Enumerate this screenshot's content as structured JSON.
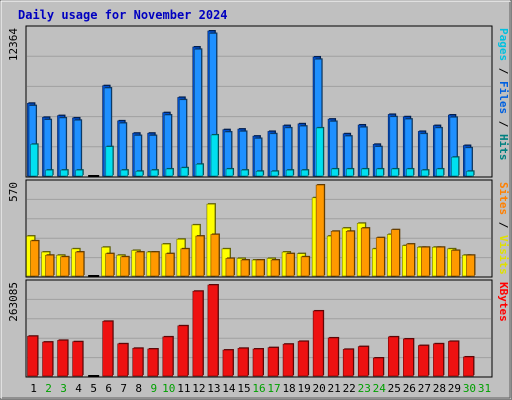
{
  "chart_data": {
    "type": "bar",
    "title": "Daily usage for November 2024",
    "categories": [
      "1",
      "2",
      "3",
      "4",
      "5",
      "6",
      "7",
      "8",
      "9",
      "10",
      "11",
      "12",
      "13",
      "14",
      "15",
      "16",
      "17",
      "18",
      "19",
      "20",
      "21",
      "22",
      "23",
      "24",
      "25",
      "26",
      "27",
      "28",
      "29",
      "30",
      "31"
    ],
    "weekend_days": [
      "2",
      "3",
      "9",
      "10",
      "16",
      "17",
      "23",
      "24",
      "30",
      "31"
    ],
    "panels": [
      {
        "id": "hits",
        "ymax_label": "12364",
        "ymax": 12364,
        "right_labels": [
          {
            "text": "Pages",
            "color": "#00c0e0"
          },
          {
            "text": " / ",
            "color": "#000000"
          },
          {
            "text": "Files",
            "color": "#0060e0"
          },
          {
            "text": " / ",
            "color": "#000000"
          },
          {
            "text": "Hits",
            "color": "#008080"
          }
        ],
        "series": [
          {
            "name": "Hits",
            "color": "#0050d0",
            "values": [
              6200,
              5000,
              5150,
              4950,
              0,
              7700,
              4700,
              3650,
              3650,
              5400,
              6700,
              11000,
              12364,
              3950,
              4000,
              3400,
              3800,
              4300,
              4450,
              10150,
              4850,
              3600,
              4350,
              2700,
              5250,
              5050,
              3800,
              4300,
              5200,
              2600,
              0
            ]
          },
          {
            "name": "Files",
            "color": "#1e90ff",
            "values": [
              6000,
              4800,
              4950,
              4750,
              0,
              7500,
              4500,
              3450,
              3450,
              5200,
              6500,
              10800,
              12150,
              3750,
              3800,
              3200,
              3600,
              4100,
              4250,
              9950,
              4650,
              3400,
              4150,
              2500,
              5050,
              4850,
              3600,
              4100,
              5000,
              2400,
              0
            ]
          },
          {
            "name": "Pages",
            "color": "#00e0f0",
            "values": [
              2700,
              500,
              500,
              500,
              0,
              2500,
              500,
              400,
              500,
              600,
              700,
              1000,
              3500,
              600,
              500,
              400,
              400,
              500,
              500,
              4100,
              600,
              600,
              600,
              600,
              600,
              600,
              500,
              600,
              1600,
              400,
              0
            ]
          }
        ]
      },
      {
        "id": "visits",
        "ymax_label": "570",
        "ymax": 570,
        "right_labels": [
          {
            "text": "Sites",
            "color": "#ff8000"
          },
          {
            "text": " / ",
            "color": "#000000"
          },
          {
            "text": "Visits",
            "color": "#e0e000"
          }
        ],
        "series": [
          {
            "name": "Visits",
            "color": "#ffff00",
            "values": [
              250,
              150,
              130,
              170,
              0,
              180,
              130,
              160,
              150,
              200,
              230,
              320,
              450,
              170,
              110,
              100,
              110,
              150,
              140,
              490,
              250,
              300,
              330,
              170,
              260,
              190,
              180,
              180,
              170,
              130,
              0
            ]
          },
          {
            "name": "Sites",
            "color": "#ff9900",
            "values": [
              220,
              130,
              120,
              150,
              0,
              140,
              120,
              150,
              150,
              140,
              170,
              250,
              260,
              110,
              100,
              100,
              100,
              140,
              120,
              570,
              280,
              280,
              300,
              240,
              290,
              200,
              180,
              180,
              160,
              130,
              0
            ]
          }
        ]
      },
      {
        "id": "kbytes",
        "ymax_label": "263085",
        "ymax": 263085,
        "right_labels": [
          {
            "text": "KBytes",
            "color": "#ff0000"
          }
        ],
        "series": [
          {
            "name": "KBytes",
            "color": "#ee1111",
            "values": [
              115000,
              98000,
              103000,
              99000,
              0,
              158000,
              93000,
              80000,
              78000,
              113000,
              145000,
              245000,
              263085,
              75000,
              80000,
              78000,
              82000,
              92000,
              100000,
              188000,
              110000,
              77000,
              85000,
              52000,
              113000,
              107000,
              88000,
              93000,
              100000,
              55000,
              0
            ]
          }
        ]
      }
    ]
  }
}
